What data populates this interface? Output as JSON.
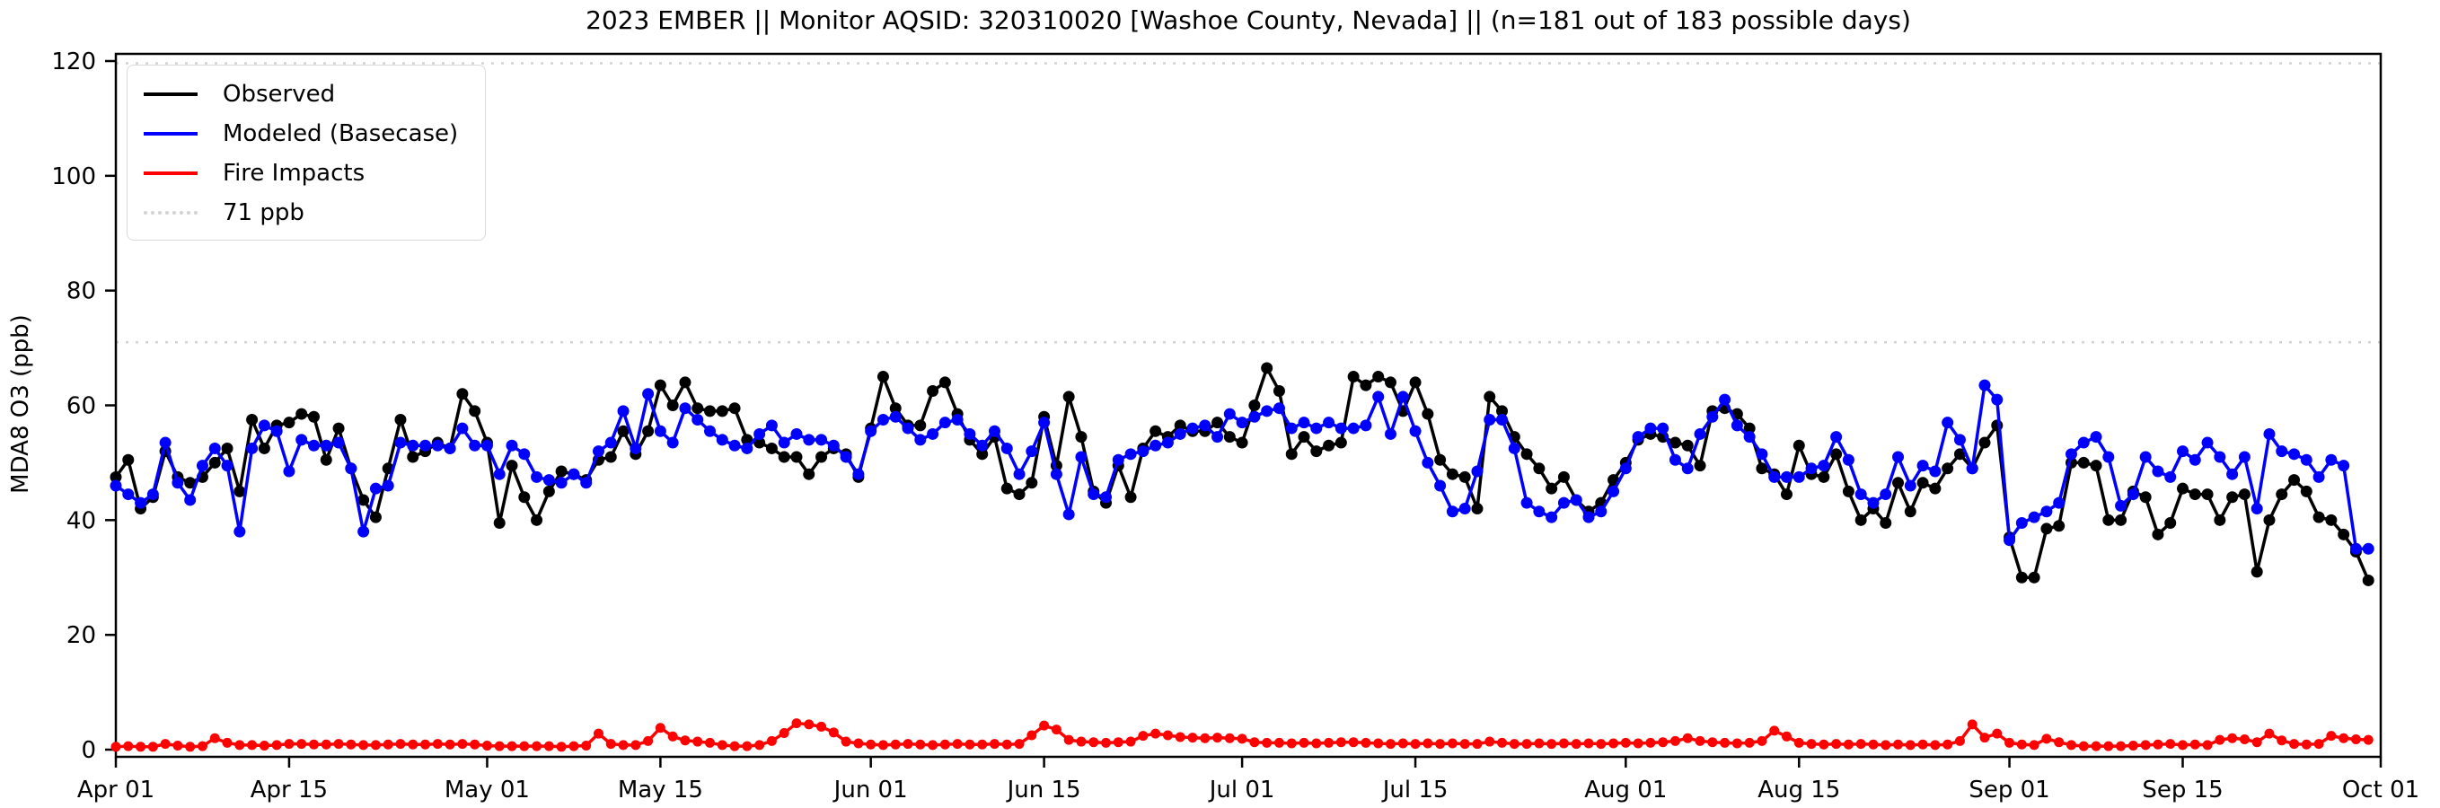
{
  "page": {
    "background": "#ffffff"
  },
  "chart_data": {
    "type": "line",
    "title": "2023 EMBER || Monitor AQSID: 320310020 [Washoe County, Nevada] || (n=181 out of 183 possible days)",
    "xlabel": "",
    "ylabel": "MDA8 O3 (ppb)",
    "ylim": [
      0,
      120
    ],
    "yticks": [
      0,
      20,
      40,
      60,
      80,
      100,
      120
    ],
    "x_range_days": [
      0,
      183
    ],
    "xticks": [
      {
        "label": "Apr 01",
        "day": 0
      },
      {
        "label": "Apr 15",
        "day": 14
      },
      {
        "label": "May 01",
        "day": 30
      },
      {
        "label": "May 15",
        "day": 44
      },
      {
        "label": "Jun 01",
        "day": 61
      },
      {
        "label": "Jun 15",
        "day": 75
      },
      {
        "label": "Jul 01",
        "day": 91
      },
      {
        "label": "Jul 15",
        "day": 105
      },
      {
        "label": "Aug 01",
        "day": 122
      },
      {
        "label": "Aug 15",
        "day": 136
      },
      {
        "label": "Sep 01",
        "day": 153
      },
      {
        "label": "Sep 15",
        "day": 167
      },
      {
        "label": "Oct 01",
        "day": 183
      }
    ],
    "grid": false,
    "legend_position": "upper-left",
    "reference_lines": [
      {
        "label": "71 ppb",
        "value": 71,
        "color": "#d3d3d3",
        "style": "dotted"
      },
      {
        "label": "",
        "value": 119.6,
        "color": "#d3d3d3",
        "style": "dotted"
      }
    ],
    "series": [
      {
        "name": "Observed",
        "color": "#000000",
        "marker": "circle",
        "values": [
          47.5,
          50.5,
          42,
          44,
          52,
          47.5,
          46.5,
          47.5,
          50,
          52.5,
          45,
          57.5,
          52.5,
          56.5,
          57,
          58.5,
          58,
          50.5,
          56,
          49,
          43.5,
          40.5,
          49,
          57.5,
          51,
          52,
          53.5,
          52.5,
          62,
          59,
          53.5,
          39.5,
          49.5,
          44,
          40,
          45,
          48.5,
          48,
          47,
          50.5,
          51,
          55.5,
          51.5,
          55.5,
          63.5,
          60,
          64,
          59.5,
          59,
          59,
          59.5,
          54,
          53.5,
          52.5,
          51,
          51,
          48,
          51,
          52.5,
          51.5,
          47.5,
          56,
          65,
          59.5,
          56.5,
          56.5,
          62.5,
          64,
          58.5,
          54,
          51.5,
          54.5,
          45.5,
          44.5,
          46.5,
          58,
          49.5,
          61.5,
          54.5,
          45,
          43,
          49.5,
          44,
          52.5,
          55.5,
          54.5,
          56.5,
          55.5,
          55.5,
          57,
          54.5,
          53.5,
          60,
          66.5,
          62.5,
          51.5,
          54.5,
          52,
          53,
          53.5,
          65,
          63.5,
          65,
          64,
          59,
          64,
          58.5,
          50.5,
          48,
          47.5,
          42,
          61.5,
          59,
          54.5,
          51.5,
          49,
          45.5,
          47.5,
          43.5,
          41.5,
          43,
          47,
          50,
          54,
          55,
          54.5,
          53.5,
          53,
          49.5,
          59,
          59.5,
          58.5,
          56,
          49,
          48,
          44.5,
          53,
          48,
          47.5,
          51.5,
          45,
          40,
          42,
          39.5,
          46.5,
          41.5,
          46.5,
          45.5,
          49,
          51.5,
          49,
          53.5,
          56.5,
          37,
          30,
          30,
          38.5,
          39,
          50,
          50,
          49.5,
          40,
          40,
          45,
          44,
          37.5,
          39.5,
          45.5,
          44.5,
          44.5,
          40,
          44,
          44.5,
          31,
          40,
          44.5,
          47,
          45,
          40.5,
          40,
          37.5,
          34.5,
          29.5
        ]
      },
      {
        "name": "Modeled (Basecase)",
        "color": "#0000ff",
        "marker": "circle",
        "values": [
          46,
          44.5,
          43,
          44.5,
          53.5,
          46.5,
          43.5,
          49.5,
          52.5,
          49.5,
          38,
          52.5,
          56.5,
          55.5,
          48.5,
          54,
          53,
          53,
          53.5,
          49,
          38,
          45.5,
          46,
          53.5,
          53,
          53,
          53,
          52.5,
          56,
          53,
          53,
          48,
          53,
          51.5,
          47.5,
          47,
          46.5,
          48,
          46.5,
          52,
          53.5,
          59,
          52.5,
          62,
          55.5,
          53.5,
          59.5,
          57.5,
          55.5,
          54,
          53,
          52.5,
          55,
          56.5,
          53.5,
          55,
          54,
          54,
          53,
          51,
          48,
          55.5,
          57.5,
          58,
          56,
          54,
          55,
          57,
          57.5,
          55,
          53,
          55.5,
          52.5,
          48,
          52,
          57,
          48,
          41,
          51,
          44.5,
          44,
          50.5,
          51.5,
          52,
          53,
          53.5,
          55,
          56,
          56.5,
          54.5,
          58.5,
          57,
          58,
          59,
          59.5,
          56,
          57,
          56,
          57,
          56,
          56,
          56.5,
          61.5,
          55,
          61.5,
          55.5,
          50,
          46,
          41.5,
          42,
          48.5,
          57.5,
          57.5,
          52.5,
          43,
          41.5,
          40.5,
          43,
          43.5,
          40.5,
          41.5,
          45,
          49,
          54.5,
          56,
          56,
          50.5,
          49,
          55,
          58,
          61,
          56.5,
          54.5,
          51.5,
          47.5,
          47.5,
          47.5,
          49,
          49.5,
          54.5,
          50.5,
          44.5,
          43,
          44.5,
          51,
          46,
          49.5,
          48.5,
          57,
          54,
          49,
          63.5,
          61,
          36.5,
          39.5,
          40.5,
          41.5,
          43,
          51.5,
          53.5,
          54.5,
          51,
          42.5,
          44.5,
          51,
          48.5,
          47.5,
          52,
          50.5,
          53.5,
          51,
          48,
          51,
          42,
          55,
          52,
          51.5,
          50.5,
          47.5,
          50.5,
          49.5,
          35,
          35
        ]
      },
      {
        "name": "Fire Impacts",
        "color": "#ff0000",
        "marker": "circle",
        "values": [
          0.5,
          0.6,
          0.5,
          0.5,
          1,
          0.7,
          0.5,
          0.6,
          2,
          1.2,
          0.8,
          0.8,
          0.7,
          0.8,
          1,
          1,
          0.9,
          0.9,
          1,
          0.9,
          0.8,
          0.8,
          0.9,
          1,
          0.9,
          0.9,
          1,
          0.9,
          1,
          0.9,
          0.7,
          0.6,
          0.6,
          0.6,
          0.6,
          0.6,
          0.5,
          0.6,
          0.7,
          2.8,
          1,
          0.8,
          0.8,
          1.5,
          3.8,
          2.3,
          1.6,
          1.4,
          1.2,
          0.8,
          0.6,
          0.6,
          0.8,
          1.5,
          2.9,
          4.6,
          4.4,
          4,
          3,
          1.4,
          1.1,
          0.9,
          0.8,
          0.9,
          1,
          0.9,
          0.8,
          0.9,
          1,
          0.9,
          0.9,
          1,
          0.9,
          1,
          2.5,
          4.2,
          3.5,
          1.7,
          1.4,
          1.3,
          1.2,
          1.3,
          1.4,
          2.4,
          2.8,
          2.5,
          2.2,
          2.1,
          2,
          2.1,
          2,
          1.9,
          1.3,
          1.2,
          1.2,
          1.1,
          1.2,
          1.1,
          1.2,
          1.3,
          1.3,
          1.2,
          1.1,
          1,
          1.1,
          1,
          1.1,
          1,
          1.1,
          1,
          1,
          1.4,
          1.2,
          1,
          1,
          1.1,
          1,
          1.1,
          1,
          1.1,
          1,
          1.1,
          1.2,
          1.1,
          1.2,
          1.3,
          1.5,
          2,
          1.5,
          1.3,
          1.2,
          1.1,
          1.2,
          1.5,
          3.3,
          2.3,
          1.2,
          1,
          0.9,
          1,
          0.9,
          1,
          0.9,
          0.8,
          0.9,
          0.8,
          0.9,
          0.8,
          0.9,
          1.5,
          4.4,
          2.1,
          2.8,
          1.2,
          0.9,
          0.8,
          1.9,
          1.3,
          0.8,
          0.6,
          0.6,
          0.6,
          0.6,
          0.7,
          0.8,
          0.9,
          1,
          0.8,
          0.9,
          0.8,
          1.7,
          2,
          1.8,
          1.3,
          2.8,
          1.6,
          1,
          0.9,
          1,
          2.4,
          2,
          1.8,
          1.7
        ]
      }
    ],
    "legend_entries": [
      "Observed",
      "Modeled (Basecase)",
      "Fire Impacts",
      "71 ppb"
    ]
  }
}
